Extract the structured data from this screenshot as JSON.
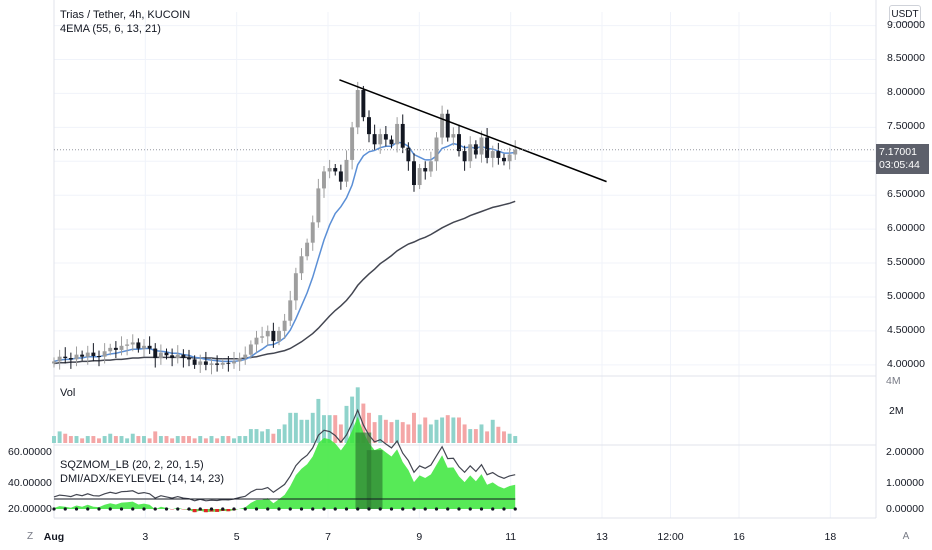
{
  "header": {
    "symbol_title": "Trias / Tether, 4h, KUCOIN",
    "indicator": "4EMA (55, 6, 13, 21)",
    "currency": "USDT"
  },
  "price_axis": {
    "ticks": [
      "9.00000",
      "8.50000",
      "8.00000",
      "7.50000",
      "7.00000",
      "6.50000",
      "6.00000",
      "5.50000",
      "5.00000",
      "4.50000",
      "4.00000"
    ],
    "values": [
      9,
      8.5,
      8,
      7.5,
      7,
      6.5,
      6,
      5.5,
      5,
      4.5,
      4
    ]
  },
  "current_price": {
    "price": "7.17001",
    "countdown": "03:05:44"
  },
  "volume_pane": {
    "label": "Vol",
    "ticks": [
      "4M",
      "2M"
    ]
  },
  "osc_pane": {
    "label1": "SQZMOM_LB (20, 2, 20, 1.5)",
    "label2": "DMI/ADX/KEYLEVEL (14, 14, 23)",
    "left_ticks": [
      "60.00000",
      "40.00000",
      "20.00000"
    ],
    "right_ticks": [
      "2.00000",
      "1.00000",
      "0.00000"
    ]
  },
  "time_axis": {
    "labels": [
      "Aug",
      "3",
      "5",
      "7",
      "9",
      "11",
      "13",
      "12:00",
      "16",
      "18"
    ]
  },
  "corners": {
    "left": "Z",
    "right": "A"
  },
  "colors": {
    "up": "#9e9e9e",
    "down": "#131722",
    "ema_fast": "#5b8fd6",
    "ema_slow": "#434651",
    "vol_up": "#8fd3cb",
    "vol_down": "#f4a6a6",
    "sqz_green": "#39e639",
    "sqz_dark": "#2e7d32",
    "sqz_red": "#e02424",
    "trendline": "#000000"
  },
  "chart_data": {
    "type": "candlestick",
    "closes": [
      4.05,
      4.12,
      4.1,
      4.08,
      4.15,
      4.12,
      4.18,
      4.13,
      4.12,
      4.2,
      4.25,
      4.22,
      4.28,
      4.3,
      4.33,
      4.24,
      4.28,
      4.24,
      4.1,
      4.18,
      4.14,
      4.1,
      4.15,
      4.1,
      4.08,
      4.0,
      4.05,
      4.0,
      4.02,
      4.0,
      4.03,
      4.02,
      4.05,
      4.1,
      4.15,
      4.3,
      4.4,
      4.42,
      4.5,
      4.35,
      4.5,
      4.65,
      4.95,
      5.35,
      5.6,
      5.8,
      6.1,
      6.6,
      6.85,
      6.9,
      6.85,
      6.7,
      7.02,
      7.5,
      8.05,
      7.65,
      7.4,
      7.25,
      7.4,
      7.32,
      7.25,
      7.55,
      7.2,
      7.0,
      6.65,
      6.9,
      6.85,
      7.0,
      7.35,
      7.7,
      7.35,
      7.4,
      7.15,
      7.0,
      7.25,
      7.1,
      7.35,
      7.05,
      7.15,
      7.05,
      7.0,
      7.1,
      7.17
    ],
    "ema_fast": [
      4.05,
      4.07,
      4.08,
      4.08,
      4.1,
      4.1,
      4.12,
      4.12,
      4.12,
      4.14,
      4.16,
      4.17,
      4.19,
      4.21,
      4.23,
      4.23,
      4.24,
      4.24,
      4.21,
      4.2,
      4.19,
      4.17,
      4.17,
      4.15,
      4.14,
      4.11,
      4.1,
      4.08,
      4.07,
      4.06,
      4.05,
      4.05,
      4.05,
      4.06,
      4.08,
      4.12,
      4.18,
      4.23,
      4.29,
      4.3,
      4.34,
      4.4,
      4.51,
      4.68,
      4.87,
      5.06,
      5.29,
      5.57,
      5.84,
      6.06,
      6.23,
      6.33,
      6.46,
      6.65,
      6.95,
      7.08,
      7.14,
      7.16,
      7.2,
      7.22,
      7.22,
      7.28,
      7.27,
      7.22,
      7.1,
      7.06,
      7.02,
      7.02,
      7.08,
      7.19,
      7.22,
      7.26,
      7.24,
      7.2,
      7.21,
      7.19,
      7.22,
      7.19,
      7.18,
      7.15,
      7.12,
      7.12,
      7.13
    ],
    "ema_slow": [
      4.02,
      4.03,
      4.03,
      4.04,
      4.04,
      4.05,
      4.05,
      4.06,
      4.06,
      4.07,
      4.07,
      4.08,
      4.08,
      4.09,
      4.1,
      4.1,
      4.11,
      4.11,
      4.11,
      4.11,
      4.11,
      4.11,
      4.11,
      4.11,
      4.11,
      4.1,
      4.1,
      4.1,
      4.1,
      4.09,
      4.09,
      4.09,
      4.09,
      4.09,
      4.1,
      4.11,
      4.12,
      4.14,
      4.16,
      4.17,
      4.19,
      4.21,
      4.24,
      4.29,
      4.34,
      4.4,
      4.46,
      4.54,
      4.63,
      4.72,
      4.8,
      4.87,
      4.95,
      5.05,
      5.17,
      5.26,
      5.34,
      5.41,
      5.49,
      5.55,
      5.61,
      5.68,
      5.73,
      5.78,
      5.81,
      5.85,
      5.88,
      5.92,
      5.97,
      6.02,
      6.06,
      6.1,
      6.13,
      6.16,
      6.2,
      6.23,
      6.26,
      6.29,
      6.32,
      6.34,
      6.36,
      6.38,
      6.41
    ],
    "volume_millions": [
      0.3,
      0.5,
      0.4,
      0.3,
      0.3,
      0.2,
      0.3,
      0.3,
      0.2,
      0.3,
      0.4,
      0.3,
      0.3,
      0.2,
      0.4,
      0.3,
      0.3,
      0.2,
      0.5,
      0.3,
      0.3,
      0.2,
      0.3,
      0.3,
      0.3,
      0.2,
      0.3,
      0.2,
      0.3,
      0.2,
      0.3,
      0.3,
      0.2,
      0.3,
      0.3,
      0.6,
      0.6,
      0.5,
      0.6,
      0.4,
      0.6,
      0.8,
      1.3,
      1.3,
      1.0,
      1.0,
      1.3,
      1.9,
      1.2,
      1.2,
      1.2,
      0.8,
      1.6,
      2.0,
      2.4,
      1.7,
      1.3,
      0.9,
      1.2,
      1.0,
      0.9,
      1.0,
      0.9,
      0.8,
      1.3,
      0.8,
      1.1,
      0.8,
      1.0,
      1.1,
      1.2,
      1.1,
      1.1,
      0.8,
      0.6,
      0.6,
      0.8,
      0.5,
      1.0,
      0.7,
      0.5,
      0.4,
      0.3
    ],
    "trendline": {
      "from": [
        7.25,
        8.2
      ],
      "to": [
        13.1,
        6.7
      ]
    },
    "x_range": [
      1.0,
      19.0
    ],
    "x_labels": [
      "Aug",
      "3",
      "5",
      "7",
      "9",
      "11",
      "13",
      "12:00",
      "16",
      "18"
    ],
    "x_positions": [
      1,
      3,
      5,
      7,
      9,
      11,
      13,
      14.5,
      16,
      18
    ],
    "ylim": [
      3.85,
      9.2
    ]
  }
}
